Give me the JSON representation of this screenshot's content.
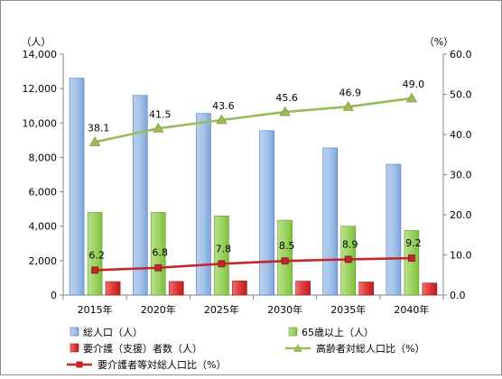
{
  "chart_data": {
    "type": "bar",
    "categories": [
      "2015年",
      "2020年",
      "2025年",
      "2030年",
      "2035年",
      "2040年"
    ],
    "y_left_unit": "（人）",
    "y_right_unit": "（%）",
    "y_left_ticks": [
      "0",
      "2,000",
      "4,000",
      "6,000",
      "8,000",
      "10,000",
      "12,000",
      "14,000"
    ],
    "y_right_ticks": [
      "0.0",
      "10.0",
      "20.0",
      "30.0",
      "40.0",
      "50.0",
      "60.0"
    ],
    "ylim_left": [
      0,
      14000
    ],
    "ylim_right": [
      0,
      60
    ],
    "grid": false,
    "legend_position": "bottom",
    "series": [
      {
        "name": "総人口（人）",
        "kind": "bar",
        "axis": "left",
        "color": "#8fb4e3",
        "values": [
          12600,
          11600,
          10550,
          9550,
          8550,
          7600
        ]
      },
      {
        "name": "65歳以上（人）",
        "kind": "bar",
        "axis": "left",
        "color": "#92d050",
        "values": [
          4800,
          4800,
          4600,
          4350,
          4000,
          3750
        ]
      },
      {
        "name": "要介護（支援）者数（人）",
        "kind": "bar",
        "axis": "left",
        "color": "#e03030",
        "values": [
          780,
          790,
          820,
          810,
          760,
          700
        ]
      },
      {
        "name": "高齢者対総人口比（%）",
        "kind": "line",
        "axis": "right",
        "color": "#9bbb59",
        "marker": "triangle",
        "values": [
          38.1,
          41.5,
          43.6,
          45.6,
          46.9,
          49.0
        ],
        "labels": [
          "38.1",
          "41.5",
          "43.6",
          "45.6",
          "46.9",
          "49.0"
        ]
      },
      {
        "name": "要介護者等対総人口比（%）",
        "kind": "line",
        "axis": "right",
        "color": "#c0282d",
        "marker": "square",
        "values": [
          6.2,
          6.8,
          7.8,
          8.5,
          8.9,
          9.2
        ],
        "labels": [
          "6.2",
          "6.8",
          "7.8",
          "8.5",
          "8.9",
          "9.2"
        ]
      }
    ]
  }
}
